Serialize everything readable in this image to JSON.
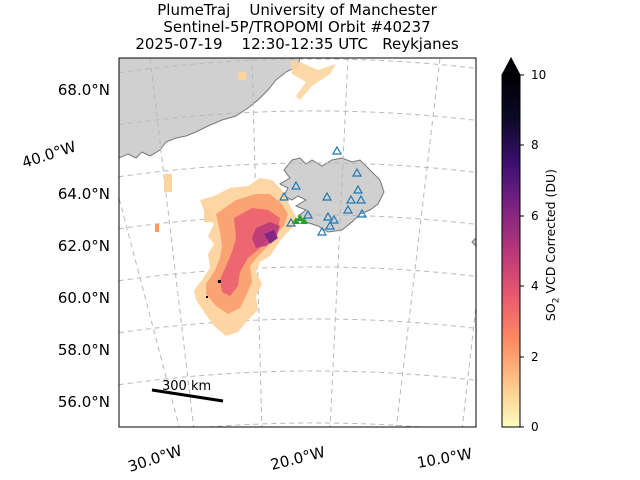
{
  "title": {
    "line1": "PlumeTraj    University of Manchester",
    "line2": "Sentinel-5P/TROPOMI Orbit #40237",
    "line3": "2025-07-19    12:30-12:35 UTC   Reykjanes"
  },
  "map": {
    "lat_labels": [
      "68.0°N",
      "64.0°N",
      "62.0°N",
      "60.0°N",
      "58.0°N",
      "56.0°N"
    ],
    "lon_labels": [
      "40.0°W",
      "30.0°W",
      "20.0°W",
      "10.0°W"
    ],
    "scale_bar_label": "300 km",
    "land_color": "#d0d0d0",
    "coast_color": "#777777",
    "grid_color": "#b8b8b8",
    "volcano_marker_color": "#1f77b4",
    "source_marker_color": "#2ca02c"
  },
  "colorbar": {
    "label_prefix": "SO",
    "label_sub": "2",
    "label_suffix": " VCD Corrected (DU)",
    "ticks": [
      "0",
      "2",
      "4",
      "6",
      "8",
      "10"
    ],
    "min": 0,
    "max": 10,
    "colormap": [
      "#fcfdbf",
      "#fec488",
      "#fc8961",
      "#e8586f",
      "#b73779",
      "#7c2382",
      "#3b0f70",
      "#0c0927",
      "#000004"
    ]
  }
}
